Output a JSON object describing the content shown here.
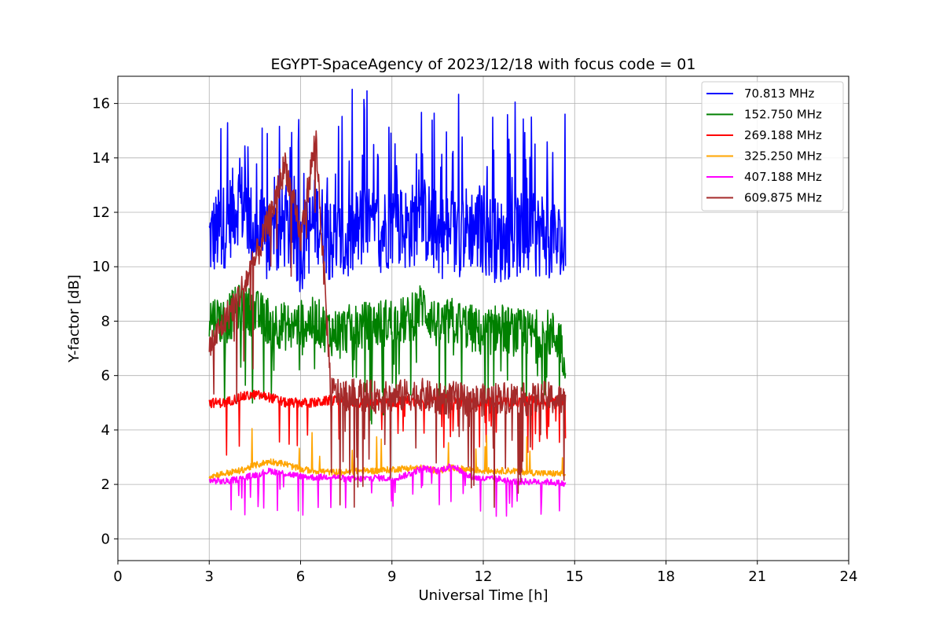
{
  "chart_data": {
    "type": "line",
    "title": "EGYPT-SpaceAgency of 2023/12/18 with focus code = 01",
    "xlabel": "Universal Time [h]",
    "ylabel": "Y-factor [dB]",
    "xlim": [
      0,
      24
    ],
    "ylim": [
      -0.8,
      17
    ],
    "xticks": [
      0,
      3,
      6,
      9,
      12,
      15,
      18,
      21,
      24
    ],
    "yticks": [
      0,
      2,
      4,
      6,
      8,
      10,
      12,
      14,
      16
    ],
    "grid": true,
    "legend_position": "top-right",
    "x": [
      3.0,
      3.5,
      4.0,
      4.5,
      5.0,
      5.5,
      6.0,
      6.5,
      7.0,
      7.5,
      8.0,
      8.5,
      9.0,
      9.5,
      10.0,
      10.5,
      11.0,
      11.5,
      12.0,
      12.5,
      13.0,
      13.5,
      14.0,
      14.5,
      14.7
    ],
    "series": [
      {
        "name": " 70.813 MHz",
        "color": "#0000ff",
        "values": [
          11.0,
          11.5,
          12.5,
          11.2,
          10.8,
          11.5,
          10.6,
          11.8,
          11.0,
          10.8,
          11.5,
          11.2,
          11.6,
          11.4,
          11.8,
          11.2,
          11.0,
          11.5,
          11.3,
          10.9,
          11.2,
          11.0,
          11.3,
          10.8,
          10.5
        ]
      },
      {
        "name": "152.750 MHz",
        "color": "#008000",
        "values": [
          8.2,
          8.0,
          8.5,
          8.3,
          8.0,
          7.8,
          7.9,
          8.0,
          7.6,
          7.7,
          7.8,
          7.9,
          8.0,
          8.0,
          8.6,
          7.8,
          8.0,
          7.8,
          7.5,
          7.8,
          7.6,
          7.5,
          7.6,
          7.4,
          6.5
        ]
      },
      {
        "name": "269.188 MHz",
        "color": "#ff0000",
        "values": [
          5.0,
          5.0,
          5.2,
          5.3,
          5.2,
          5.0,
          5.0,
          5.0,
          5.1,
          5.0,
          5.0,
          5.0,
          5.0,
          5.1,
          5.0,
          5.2,
          5.1,
          5.0,
          5.0,
          5.1,
          5.0,
          5.1,
          5.0,
          5.1,
          5.1
        ]
      },
      {
        "name": "325.250 MHz",
        "color": "#ffa500",
        "values": [
          2.3,
          2.4,
          2.5,
          2.7,
          2.85,
          2.75,
          2.55,
          2.5,
          2.45,
          2.45,
          2.5,
          2.5,
          2.55,
          2.6,
          2.6,
          2.5,
          2.6,
          2.55,
          2.5,
          2.5,
          2.5,
          2.45,
          2.4,
          2.4,
          2.3
        ]
      },
      {
        "name": "407.188 MHz",
        "color": "#ff00ff",
        "values": [
          2.15,
          2.1,
          2.2,
          2.35,
          2.5,
          2.4,
          2.3,
          2.25,
          2.3,
          2.2,
          2.2,
          2.25,
          2.2,
          2.35,
          2.6,
          2.5,
          2.7,
          2.3,
          2.2,
          2.2,
          2.1,
          2.1,
          2.1,
          2.05,
          2.0
        ]
      },
      {
        "name": "609.875 MHz",
        "color": "#a52a2a",
        "values": [
          7.0,
          8.0,
          9.0,
          10.2,
          11.8,
          13.8,
          11.0,
          14.8,
          5.4,
          5.3,
          5.3,
          5.2,
          5.2,
          5.3,
          5.3,
          5.1,
          5.2,
          5.1,
          5.1,
          5.2,
          5.2,
          5.1,
          5.2,
          5.1,
          5.0
        ]
      }
    ]
  }
}
